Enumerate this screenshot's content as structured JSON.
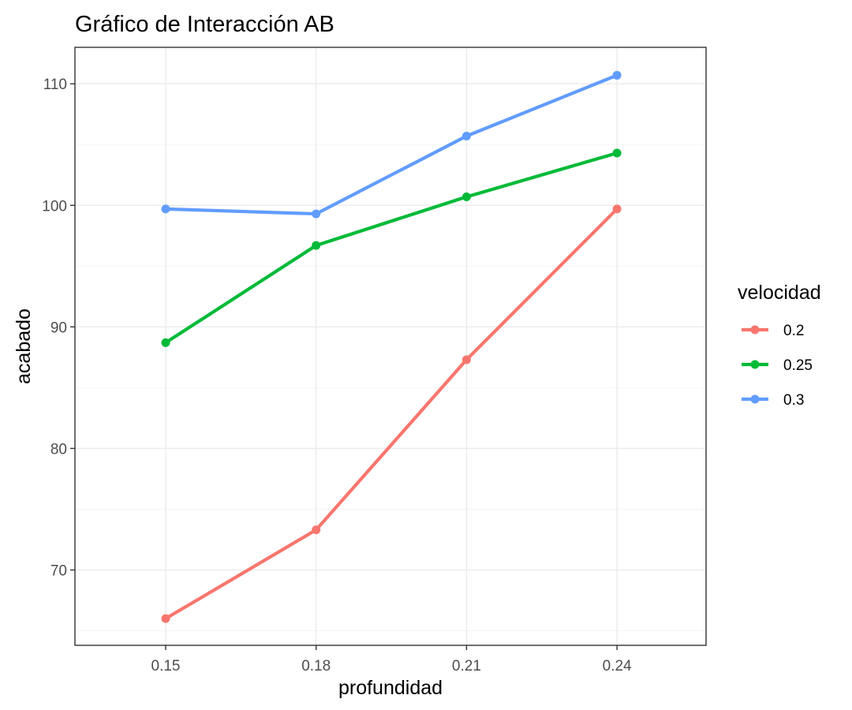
{
  "chart_data": {
    "type": "line",
    "title": "Gráfico de Interacción AB",
    "xlabel": "profundidad",
    "ylabel": "acabado",
    "categories": [
      "0.15",
      "0.18",
      "0.21",
      "0.24"
    ],
    "ylim": [
      63.8,
      113
    ],
    "y_ticks": [
      70,
      80,
      90,
      100,
      110
    ],
    "y_tick_labels": [
      "70",
      "80",
      "90",
      "100",
      "110"
    ],
    "grid": true,
    "legend": {
      "title": "velocidad",
      "placement": "right"
    },
    "series": [
      {
        "name": "0.2",
        "color": "#F8766D",
        "values": [
          66.0,
          73.3,
          87.3,
          99.7
        ]
      },
      {
        "name": "0.25",
        "color": "#00BA38",
        "values": [
          88.7,
          96.7,
          100.7,
          104.3
        ]
      },
      {
        "name": "0.3",
        "color": "#619CFF",
        "values": [
          99.7,
          99.3,
          105.7,
          110.7
        ]
      }
    ]
  }
}
